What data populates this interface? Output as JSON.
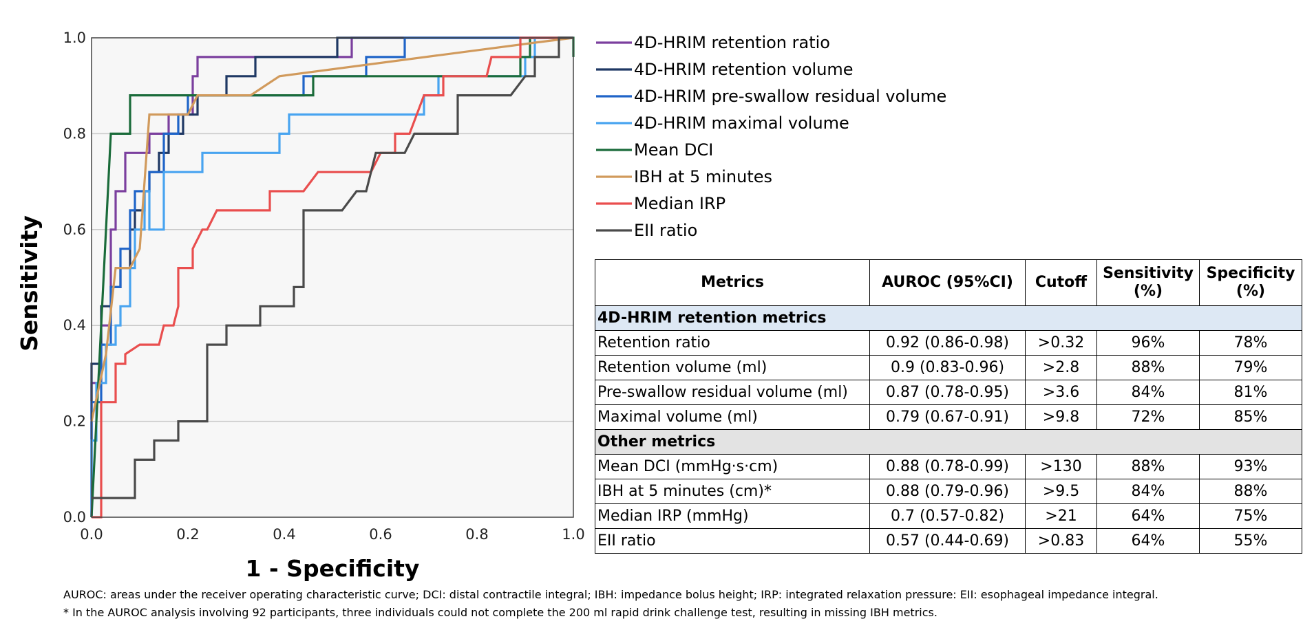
{
  "chart_data": {
    "type": "line",
    "title": "",
    "xlabel": "1 - Specificity",
    "ylabel": "Sensitivity",
    "xlim": [
      0,
      1
    ],
    "ylim": [
      0,
      1
    ],
    "x_ticks": [
      "0.0",
      "0.2",
      "0.4",
      "0.6",
      "0.8",
      "1.0"
    ],
    "y_ticks": [
      "0.0",
      "0.2",
      "0.4",
      "0.6",
      "0.8",
      "1.0"
    ],
    "grid": "horizontal",
    "legend_position": "right",
    "series": [
      {
        "name": "4D-HRIM retention ratio",
        "color": "#7b3f9e",
        "points": [
          [
            0,
            0
          ],
          [
            0,
            0.28
          ],
          [
            0.02,
            0.28
          ],
          [
            0.02,
            0.4
          ],
          [
            0.04,
            0.4
          ],
          [
            0.04,
            0.6
          ],
          [
            0.05,
            0.6
          ],
          [
            0.05,
            0.68
          ],
          [
            0.07,
            0.68
          ],
          [
            0.07,
            0.76
          ],
          [
            0.12,
            0.76
          ],
          [
            0.12,
            0.8
          ],
          [
            0.16,
            0.8
          ],
          [
            0.16,
            0.84
          ],
          [
            0.21,
            0.84
          ],
          [
            0.21,
            0.92
          ],
          [
            0.22,
            0.92
          ],
          [
            0.22,
            0.96
          ],
          [
            0.54,
            0.96
          ],
          [
            0.54,
            1
          ],
          [
            1,
            1
          ]
        ]
      },
      {
        "name": "4D-HRIM retention volume",
        "color": "#1f3864",
        "points": [
          [
            0,
            0
          ],
          [
            0,
            0.32
          ],
          [
            0.02,
            0.32
          ],
          [
            0.02,
            0.44
          ],
          [
            0.04,
            0.44
          ],
          [
            0.04,
            0.48
          ],
          [
            0.06,
            0.48
          ],
          [
            0.06,
            0.52
          ],
          [
            0.08,
            0.52
          ],
          [
            0.08,
            0.6
          ],
          [
            0.09,
            0.6
          ],
          [
            0.09,
            0.64
          ],
          [
            0.11,
            0.64
          ],
          [
            0.11,
            0.68
          ],
          [
            0.12,
            0.68
          ],
          [
            0.12,
            0.72
          ],
          [
            0.14,
            0.72
          ],
          [
            0.14,
            0.76
          ],
          [
            0.16,
            0.76
          ],
          [
            0.16,
            0.8
          ],
          [
            0.19,
            0.8
          ],
          [
            0.19,
            0.84
          ],
          [
            0.22,
            0.84
          ],
          [
            0.22,
            0.88
          ],
          [
            0.28,
            0.88
          ],
          [
            0.28,
            0.92
          ],
          [
            0.34,
            0.92
          ],
          [
            0.34,
            0.96
          ],
          [
            0.51,
            0.96
          ],
          [
            0.51,
            1
          ],
          [
            1,
            1
          ]
        ]
      },
      {
        "name": "4D-HRIM pre-swallow residual volume",
        "color": "#1f64c8",
        "points": [
          [
            0,
            0
          ],
          [
            0,
            0.24
          ],
          [
            0.02,
            0.24
          ],
          [
            0.02,
            0.36
          ],
          [
            0.04,
            0.36
          ],
          [
            0.04,
            0.48
          ],
          [
            0.06,
            0.48
          ],
          [
            0.06,
            0.56
          ],
          [
            0.08,
            0.56
          ],
          [
            0.08,
            0.64
          ],
          [
            0.09,
            0.64
          ],
          [
            0.09,
            0.68
          ],
          [
            0.12,
            0.68
          ],
          [
            0.12,
            0.72
          ],
          [
            0.15,
            0.72
          ],
          [
            0.15,
            0.8
          ],
          [
            0.18,
            0.8
          ],
          [
            0.18,
            0.84
          ],
          [
            0.2,
            0.84
          ],
          [
            0.2,
            0.88
          ],
          [
            0.44,
            0.88
          ],
          [
            0.44,
            0.92
          ],
          [
            0.57,
            0.92
          ],
          [
            0.57,
            0.96
          ],
          [
            0.65,
            0.96
          ],
          [
            0.65,
            1
          ],
          [
            1,
            1
          ]
        ]
      },
      {
        "name": "4D-HRIM maximal volume",
        "color": "#48a4f0",
        "points": [
          [
            0,
            0
          ],
          [
            0,
            0.16
          ],
          [
            0.01,
            0.16
          ],
          [
            0.01,
            0.28
          ],
          [
            0.03,
            0.28
          ],
          [
            0.03,
            0.36
          ],
          [
            0.05,
            0.36
          ],
          [
            0.05,
            0.4
          ],
          [
            0.06,
            0.4
          ],
          [
            0.06,
            0.44
          ],
          [
            0.08,
            0.44
          ],
          [
            0.08,
            0.52
          ],
          [
            0.09,
            0.52
          ],
          [
            0.09,
            0.6
          ],
          [
            0.11,
            0.6
          ],
          [
            0.11,
            0.68
          ],
          [
            0.12,
            0.68
          ],
          [
            0.12,
            0.6
          ],
          [
            0.15,
            0.6
          ],
          [
            0.15,
            0.72
          ],
          [
            0.23,
            0.72
          ],
          [
            0.23,
            0.76
          ],
          [
            0.39,
            0.76
          ],
          [
            0.39,
            0.8
          ],
          [
            0.41,
            0.8
          ],
          [
            0.41,
            0.84
          ],
          [
            0.69,
            0.84
          ],
          [
            0.69,
            0.88
          ],
          [
            0.72,
            0.88
          ],
          [
            0.72,
            0.92
          ],
          [
            0.9,
            0.92
          ],
          [
            0.9,
            0.96
          ],
          [
            0.92,
            0.96
          ],
          [
            0.92,
            1
          ],
          [
            1,
            1
          ]
        ]
      },
      {
        "name": "Mean DCI",
        "color": "#1a6b3a",
        "points": [
          [
            0,
            0
          ],
          [
            0.04,
            0.8
          ],
          [
            0.08,
            0.8
          ],
          [
            0.08,
            0.88
          ],
          [
            0.46,
            0.88
          ],
          [
            0.46,
            0.92
          ],
          [
            0.89,
            0.92
          ],
          [
            0.89,
            0.96
          ],
          [
            0.91,
            0.96
          ],
          [
            0.91,
            1
          ],
          [
            1,
            1
          ],
          [
            1,
            0.96
          ]
        ]
      },
      {
        "name": "IBH at 5 minutes",
        "color": "#d19a5c",
        "points": [
          [
            0,
            0.2
          ],
          [
            0.03,
            0.34
          ],
          [
            0.05,
            0.52
          ],
          [
            0.08,
            0.52
          ],
          [
            0.1,
            0.56
          ],
          [
            0.12,
            0.84
          ],
          [
            0.2,
            0.84
          ],
          [
            0.22,
            0.88
          ],
          [
            0.33,
            0.88
          ],
          [
            0.39,
            0.92
          ],
          [
            0.92,
            0.99
          ],
          [
            1,
            1
          ]
        ]
      },
      {
        "name": "Median IRP",
        "color": "#e94e4e",
        "points": [
          [
            0,
            0
          ],
          [
            0.02,
            0
          ],
          [
            0.02,
            0.24
          ],
          [
            0.05,
            0.24
          ],
          [
            0.05,
            0.32
          ],
          [
            0.07,
            0.32
          ],
          [
            0.07,
            0.34
          ],
          [
            0.1,
            0.36
          ],
          [
            0.14,
            0.36
          ],
          [
            0.15,
            0.4
          ],
          [
            0.17,
            0.4
          ],
          [
            0.18,
            0.44
          ],
          [
            0.18,
            0.52
          ],
          [
            0.21,
            0.52
          ],
          [
            0.21,
            0.56
          ],
          [
            0.23,
            0.6
          ],
          [
            0.24,
            0.6
          ],
          [
            0.26,
            0.64
          ],
          [
            0.37,
            0.64
          ],
          [
            0.37,
            0.68
          ],
          [
            0.44,
            0.68
          ],
          [
            0.47,
            0.72
          ],
          [
            0.58,
            0.72
          ],
          [
            0.6,
            0.76
          ],
          [
            0.63,
            0.76
          ],
          [
            0.63,
            0.8
          ],
          [
            0.66,
            0.8
          ],
          [
            0.69,
            0.88
          ],
          [
            0.73,
            0.88
          ],
          [
            0.73,
            0.92
          ],
          [
            0.82,
            0.92
          ],
          [
            0.83,
            0.96
          ],
          [
            0.89,
            0.96
          ],
          [
            0.89,
            1
          ],
          [
            1,
            1
          ]
        ]
      },
      {
        "name": "EII ratio",
        "color": "#4a4a4a",
        "points": [
          [
            0,
            0.04
          ],
          [
            0.09,
            0.04
          ],
          [
            0.09,
            0.12
          ],
          [
            0.13,
            0.12
          ],
          [
            0.13,
            0.16
          ],
          [
            0.18,
            0.16
          ],
          [
            0.18,
            0.2
          ],
          [
            0.24,
            0.2
          ],
          [
            0.24,
            0.36
          ],
          [
            0.28,
            0.36
          ],
          [
            0.28,
            0.4
          ],
          [
            0.35,
            0.4
          ],
          [
            0.35,
            0.44
          ],
          [
            0.42,
            0.44
          ],
          [
            0.42,
            0.48
          ],
          [
            0.44,
            0.48
          ],
          [
            0.44,
            0.64
          ],
          [
            0.52,
            0.64
          ],
          [
            0.55,
            0.68
          ],
          [
            0.57,
            0.68
          ],
          [
            0.59,
            0.76
          ],
          [
            0.65,
            0.76
          ],
          [
            0.67,
            0.8
          ],
          [
            0.76,
            0.8
          ],
          [
            0.76,
            0.88
          ],
          [
            0.87,
            0.88
          ],
          [
            0.9,
            0.92
          ],
          [
            0.92,
            0.92
          ],
          [
            0.92,
            0.96
          ],
          [
            0.97,
            0.96
          ],
          [
            0.97,
            1
          ],
          [
            1,
            1
          ]
        ]
      }
    ]
  },
  "table": {
    "headers": [
      "Metrics",
      "AUROC (95%CI)",
      "Cutoff",
      "Sensitivity (%)",
      "Specificity (%)"
    ],
    "sections": [
      {
        "title": "4D-HRIM retention metrics",
        "shade": "blue",
        "rows": [
          [
            "Retention ratio",
            "0.92 (0.86-0.98)",
            ">0.32",
            "96%",
            "78%"
          ],
          [
            "Retention volume (ml)",
            "0.9 (0.83-0.96)",
            ">2.8",
            "88%",
            "79%"
          ],
          [
            "Pre-swallow residual volume (ml)",
            "0.87 (0.78-0.95)",
            ">3.6",
            "84%",
            "81%"
          ],
          [
            "Maximal volume (ml)",
            "0.79 (0.67-0.91)",
            ">9.8",
            "72%",
            "85%"
          ]
        ]
      },
      {
        "title": "Other metrics",
        "shade": "gray",
        "rows": [
          [
            "Mean DCI (mmHg·s·cm)",
            "0.88 (0.78-0.99)",
            ">130",
            "88%",
            "93%"
          ],
          [
            "IBH at 5 minutes (cm)*",
            "0.88 (0.79-0.96)",
            ">9.5",
            "84%",
            "88%"
          ],
          [
            "Median IRP (mmHg)",
            "0.7 (0.57-0.82)",
            ">21",
            "64%",
            "75%"
          ],
          [
            "EII ratio",
            "0.57 (0.44-0.69)",
            ">0.83",
            "64%",
            "55%"
          ]
        ]
      }
    ]
  },
  "footnotes": {
    "abbreviations": "AUROC: areas under the receiver operating characteristic curve; DCI: distal contractile integral; IBH: impedance bolus height; IRP: integrated relaxation pressure: EII: esophageal impedance integral.",
    "asterisk_note": "* In the AUROC analysis involving 92 participants, three individuals could not complete the 200 ml rapid drink challenge test, resulting in missing IBH metrics."
  }
}
